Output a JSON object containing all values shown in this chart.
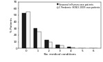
{
  "categories": [
    0,
    1,
    2,
    3,
    4,
    5,
    6
  ],
  "seasonal": [
    53,
    30,
    13,
    5,
    2,
    0.5,
    0.5
  ],
  "pandemic": [
    55,
    25,
    10,
    4,
    1.5,
    0.5,
    0.5
  ],
  "bar_color_seasonal": "#1a1a1a",
  "bar_color_pandemic": "#f5f5f5",
  "bar_edgecolor_pandemic": "#333333",
  "ylabel": "% Patients",
  "xlabel": "No. medical conditions",
  "ylim": [
    0,
    70
  ],
  "yticks": [
    0,
    10,
    20,
    30,
    40,
    50,
    60,
    70
  ],
  "legend_seasonal": "Seasonal influenza case-patients",
  "legend_pandemic": "C Pandemic (H1N1) 2009 case-patients",
  "background_color": "#ffffff"
}
